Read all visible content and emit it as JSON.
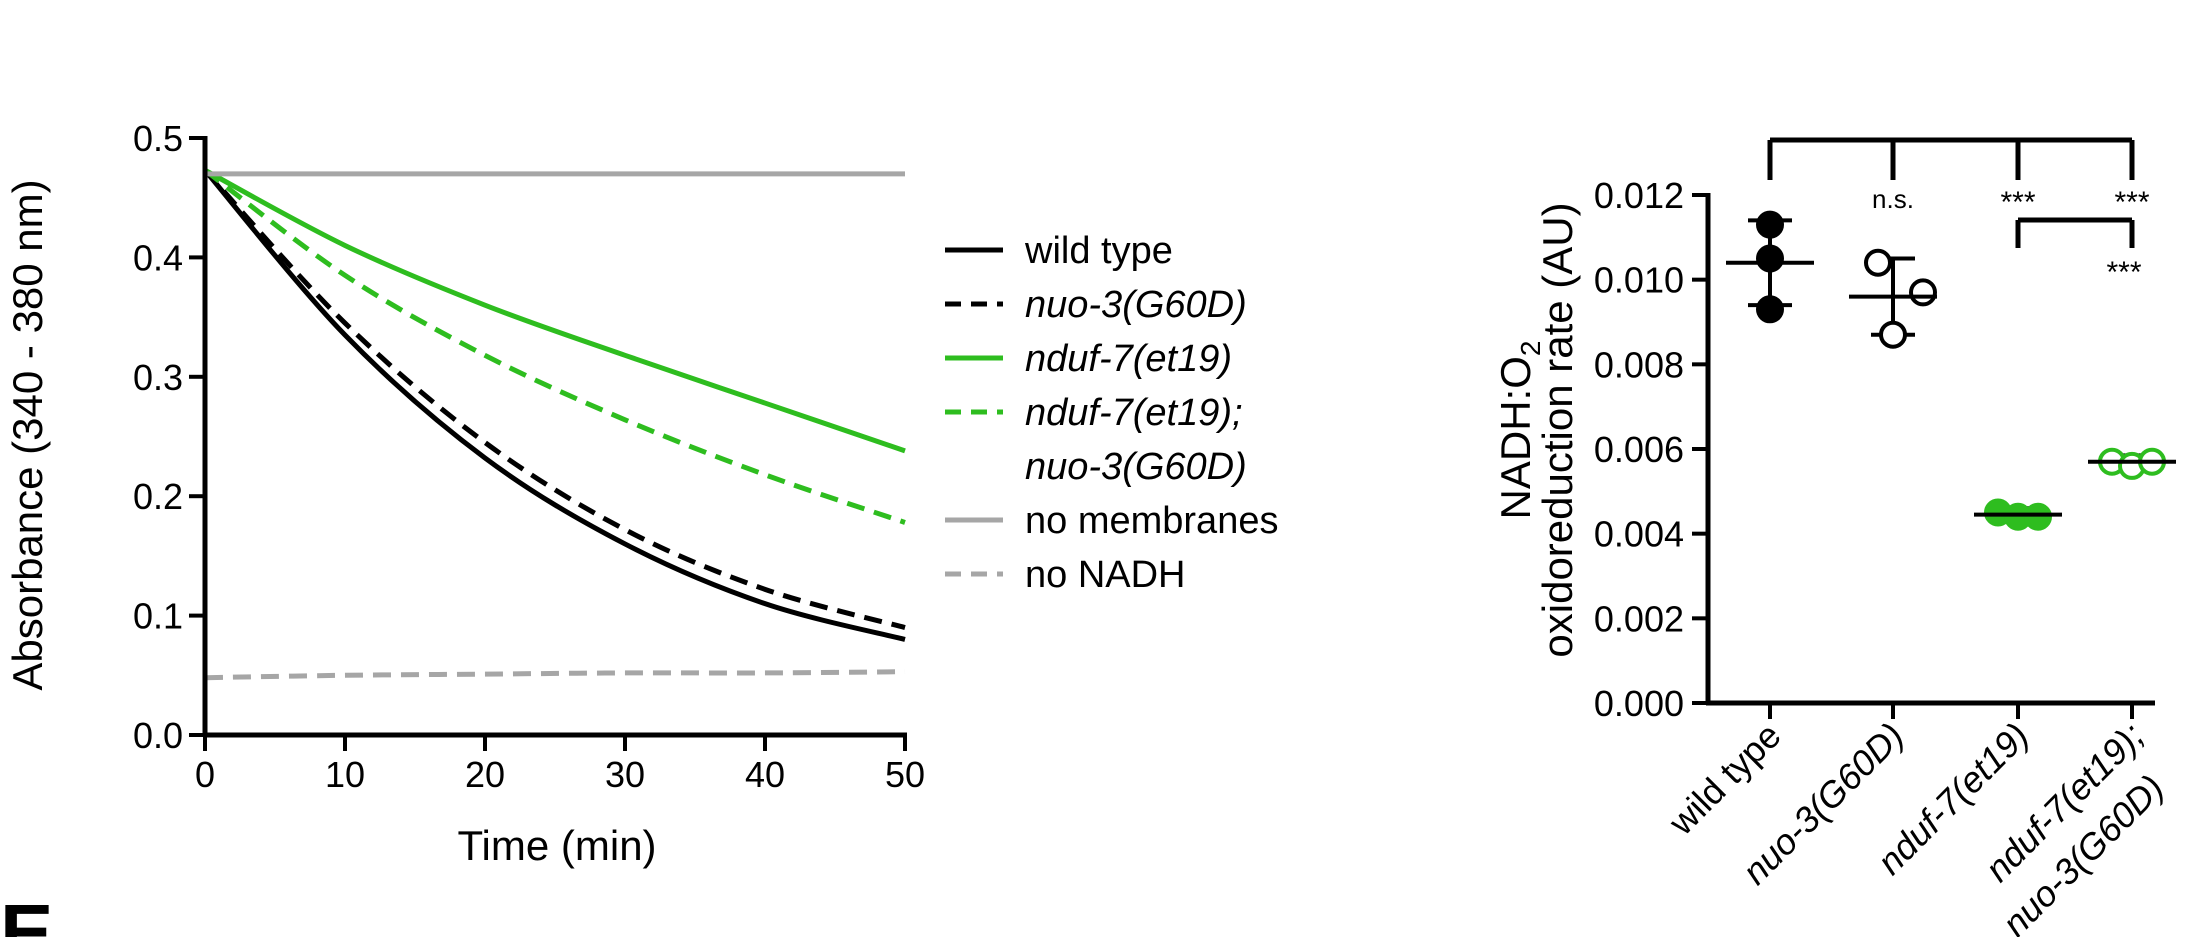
{
  "panel_letter": "E",
  "colors": {
    "black": "#000000",
    "green": "#2ebd1f",
    "gray": "#a6a6a6"
  },
  "chart_data": [
    {
      "type": "line",
      "title": "",
      "xlabel": "Time (min)",
      "ylabel": "Absorbance (340 - 380 nm)",
      "xlim": [
        0,
        50
      ],
      "ylim": [
        0,
        0.5
      ],
      "x_ticks": [
        0,
        10,
        20,
        30,
        40,
        50
      ],
      "x_tick_labels": [
        "0",
        "10",
        "20",
        "30",
        "40",
        "50"
      ],
      "y_ticks": [
        0.0,
        0.1,
        0.2,
        0.3,
        0.4,
        0.5
      ],
      "y_tick_labels": [
        "0.0",
        "0.1",
        "0.2",
        "0.3",
        "0.4",
        "0.5"
      ],
      "x": [
        0,
        10,
        20,
        30,
        40,
        50
      ],
      "legend_position": "right",
      "series": [
        {
          "name": "wild type",
          "color": "#000000",
          "dash": "solid",
          "italic": false,
          "values": [
            0.473,
            0.335,
            0.232,
            0.16,
            0.11,
            0.08
          ]
        },
        {
          "name": "nuo-3(G60D)",
          "color": "#000000",
          "dash": "dashed",
          "italic": true,
          "values": [
            0.473,
            0.345,
            0.245,
            0.172,
            0.122,
            0.09
          ]
        },
        {
          "name": "nduf-7(et19)",
          "color": "#2ebd1f",
          "dash": "solid",
          "italic": true,
          "values": [
            0.473,
            0.41,
            0.36,
            0.318,
            0.278,
            0.238
          ]
        },
        {
          "name": "nduf-7(et19);\nnuo-3(G60D)",
          "label_lines": [
            "nduf-7(et19);",
            "nuo-3(G60D)"
          ],
          "color": "#2ebd1f",
          "dash": "dashed",
          "italic": true,
          "values": [
            0.473,
            0.385,
            0.318,
            0.264,
            0.218,
            0.178
          ]
        },
        {
          "name": "no membranes",
          "color": "#a6a6a6",
          "dash": "solid",
          "italic": false,
          "values": [
            0.47,
            0.47,
            0.47,
            0.47,
            0.47,
            0.47
          ]
        },
        {
          "name": "no NADH",
          "color": "#a6a6a6",
          "dash": "dashed",
          "italic": false,
          "values": [
            0.048,
            0.05,
            0.051,
            0.052,
            0.052,
            0.053
          ]
        }
      ]
    },
    {
      "type": "scatter",
      "title": "",
      "ylabel_lines": [
        "NADH:O2",
        "oxidoreduction rate (AU)"
      ],
      "ylabel_main": "NADH:O",
      "ylabel_sub": "2",
      "ylabel_second": "oxidoreduction rate (AU)",
      "ylim": [
        0,
        0.012
      ],
      "y_ticks": [
        0.0,
        0.002,
        0.004,
        0.006,
        0.008,
        0.01,
        0.012
      ],
      "y_tick_labels": [
        "0.000",
        "0.002",
        "0.004",
        "0.006",
        "0.008",
        "0.010",
        "0.012"
      ],
      "categories": [
        "wild type",
        "nuo-3(G60D)",
        "nduf-7(et19)",
        "nduf-7(et19);\nnuo-3(G60D)"
      ],
      "category_labels": [
        {
          "text": "wild type",
          "italic": false
        },
        {
          "text": "nuo-3(G60D)",
          "italic": true
        },
        {
          "text": "nduf-7(et19)",
          "italic": true
        },
        {
          "text": "nduf-7(et19);",
          "italic": true
        },
        {
          "text": "nuo-3(G60D)",
          "italic": true
        }
      ],
      "groups": [
        {
          "category": "wild type",
          "points": [
            0.0113,
            0.0105,
            0.0093
          ],
          "mean": 0.0104,
          "sd": 0.001,
          "color": "#000000",
          "fill": "filled"
        },
        {
          "category": "nuo-3(G60D)",
          "points": [
            0.0104,
            0.0097,
            0.0087
          ],
          "mean": 0.0096,
          "sd": 0.0009,
          "color": "#000000",
          "fill": "open"
        },
        {
          "category": "nduf-7(et19)",
          "points": [
            0.0045,
            0.0044,
            0.0044
          ],
          "mean": 0.00445,
          "sd": 0.00015,
          "color": "#2ebd1f",
          "fill": "filled"
        },
        {
          "category": "nduf-7(et19);\nnuo-3(G60D)",
          "points": [
            0.0057,
            0.0056,
            0.0057
          ],
          "mean": 0.0057,
          "sd": 0.00015,
          "color": "#2ebd1f",
          "fill": "open"
        }
      ],
      "significance": {
        "bracket_vs_wild_type": [
          "n.s.",
          "***",
          "***"
        ],
        "bracket_pair_3_4": "***"
      }
    }
  ]
}
